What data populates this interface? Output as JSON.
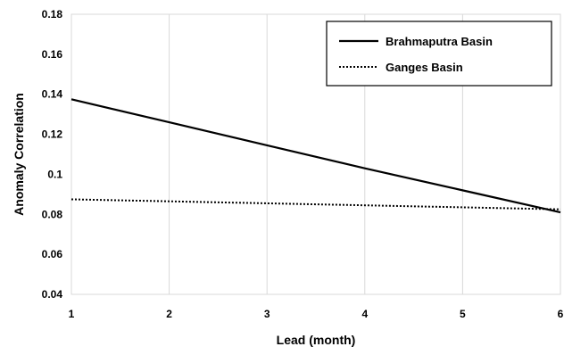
{
  "chart_data": {
    "type": "line",
    "title": "",
    "xlabel": "Lead (month)",
    "ylabel": "Anomaly Correlation",
    "x": [
      1,
      2,
      3,
      4,
      5,
      6
    ],
    "xlim": [
      1,
      6
    ],
    "ylim": [
      0.04,
      0.18
    ],
    "x_ticks": [
      "1",
      "2",
      "3",
      "4",
      "5",
      "6"
    ],
    "y_ticks": [
      "0.04",
      "0.06",
      "0.08",
      "0.1",
      "0.12",
      "0.14",
      "0.16",
      "0.18"
    ],
    "grid": "vertical",
    "legend_position": "top-right",
    "series": [
      {
        "name": "Brahmaputra Basin",
        "style": "solid",
        "color": "#000000",
        "values": [
          0.1375,
          0.126,
          0.1145,
          0.103,
          0.092,
          0.081
        ]
      },
      {
        "name": "Ganges Basin",
        "style": "dotted",
        "color": "#000000",
        "values": [
          0.0875,
          0.0865,
          0.0855,
          0.0845,
          0.0835,
          0.0825
        ]
      }
    ]
  }
}
